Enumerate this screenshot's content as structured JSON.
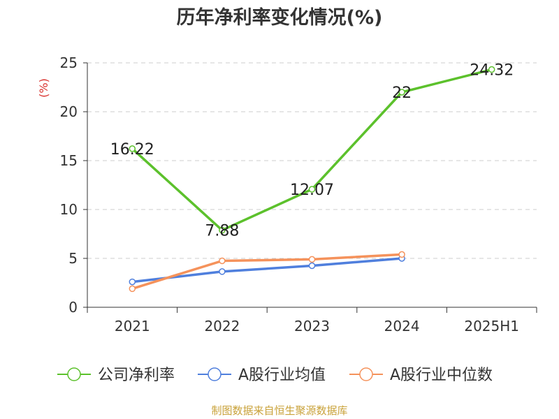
{
  "chart_data": {
    "type": "line",
    "title": "历年净利率变化情况(%)",
    "ylabel": "(%)",
    "xlabel": "",
    "categories": [
      "2021",
      "2022",
      "2023",
      "2024",
      "2025H1"
    ],
    "ylim": [
      0,
      25
    ],
    "yticks": [
      0,
      5,
      10,
      15,
      20,
      25
    ],
    "yticks_labels": [
      "0",
      "5",
      "10",
      "15",
      "20",
      "25"
    ],
    "grid": "horizontal-dashed",
    "legend_position": "bottom",
    "series": [
      {
        "name": "公司净利率",
        "color": "#5cc12c",
        "values": [
          16.22,
          7.88,
          12.07,
          22,
          24.32
        ],
        "data_labels": [
          "16.22",
          "7.88",
          "12.07",
          "22",
          "24.32"
        ]
      },
      {
        "name": "A股行业均值",
        "color": "#4f7fdd",
        "values": [
          2.6,
          3.65,
          4.25,
          5.0,
          null
        ]
      },
      {
        "name": "A股行业中位数",
        "color": "#f5925b",
        "values": [
          1.9,
          4.75,
          4.9,
          5.4,
          null
        ]
      }
    ]
  },
  "source_note": "制图数据来自恒生聚源数据库",
  "colors": {
    "title": "#333333",
    "axis": "#333333",
    "unit_label": "#d9302c",
    "source_note": "#c9a23a",
    "grid": "#cccccc"
  }
}
